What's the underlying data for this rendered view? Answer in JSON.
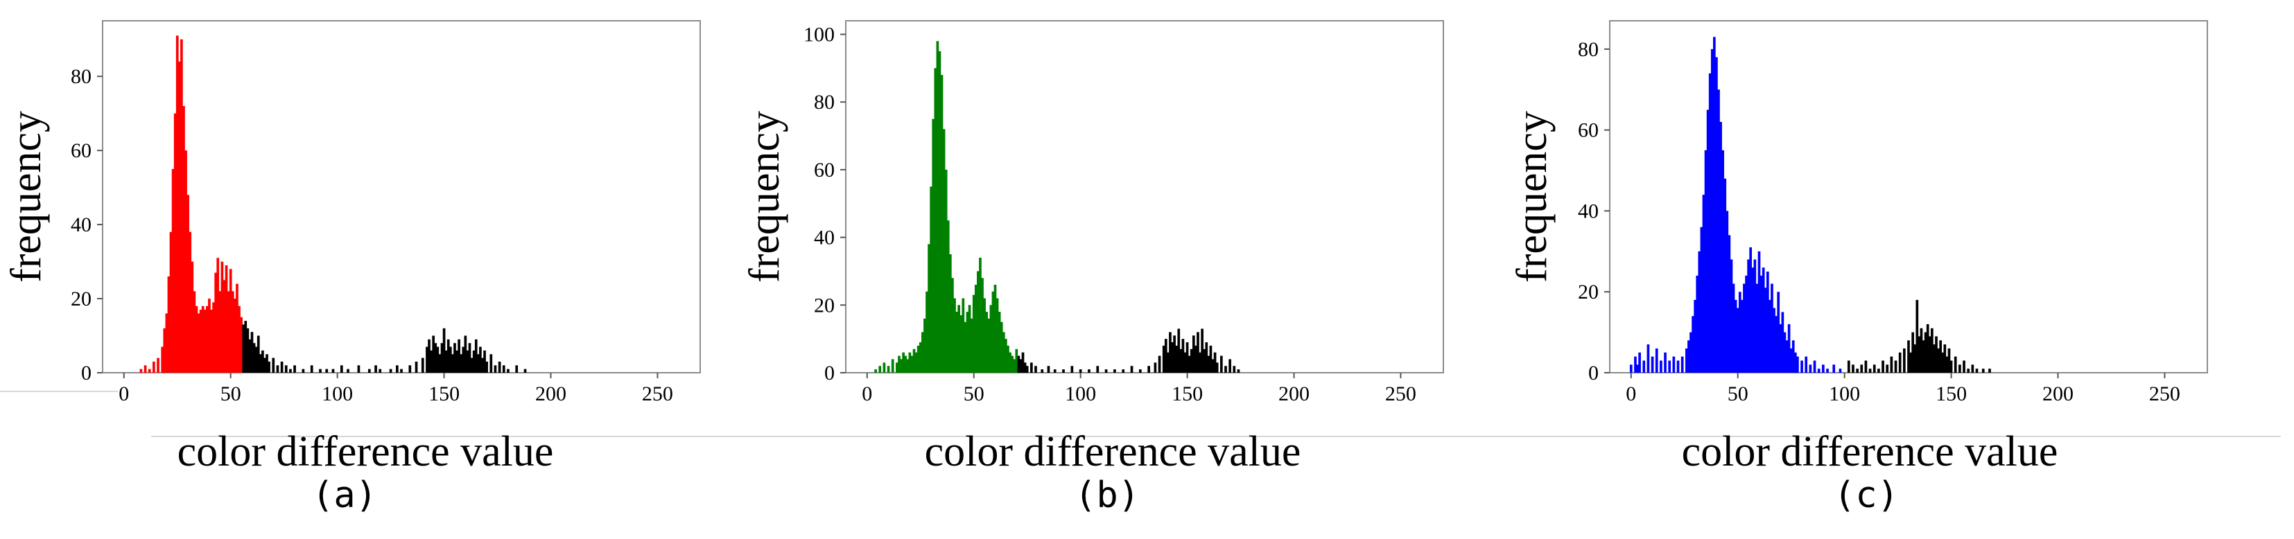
{
  "figure": {
    "captions": [
      "(a)",
      "(b)",
      "(c)"
    ]
  },
  "chart_data": [
    {
      "type": "bar",
      "panel": "(a)",
      "xlabel": "color difference value",
      "ylabel": "frequency",
      "xlim": [
        -10,
        270
      ],
      "ylim": [
        0,
        95
      ],
      "xticks": [
        0,
        50,
        100,
        150,
        200,
        250
      ],
      "yticks": [
        0,
        20,
        40,
        60,
        80
      ],
      "grid": false,
      "colors": {
        "primary": "#ff0000",
        "secondary": "#000000"
      },
      "threshold": 56,
      "bins": [
        [
          8,
          1
        ],
        [
          10,
          2
        ],
        [
          12,
          1
        ],
        [
          14,
          3
        ],
        [
          16,
          4
        ],
        [
          18,
          7
        ],
        [
          19,
          12
        ],
        [
          20,
          16
        ],
        [
          21,
          26
        ],
        [
          22,
          38
        ],
        [
          23,
          55
        ],
        [
          24,
          70
        ],
        [
          25,
          91
        ],
        [
          26,
          84
        ],
        [
          27,
          90
        ],
        [
          28,
          72
        ],
        [
          29,
          60
        ],
        [
          30,
          48
        ],
        [
          31,
          38
        ],
        [
          32,
          30
        ],
        [
          33,
          22
        ],
        [
          34,
          18
        ],
        [
          35,
          16
        ],
        [
          36,
          17
        ],
        [
          37,
          18
        ],
        [
          38,
          17
        ],
        [
          39,
          18
        ],
        [
          40,
          20
        ],
        [
          41,
          17
        ],
        [
          42,
          19
        ],
        [
          43,
          27
        ],
        [
          44,
          31
        ],
        [
          45,
          22
        ],
        [
          46,
          30
        ],
        [
          47,
          25
        ],
        [
          48,
          29
        ],
        [
          49,
          22
        ],
        [
          50,
          28
        ],
        [
          51,
          22
        ],
        [
          52,
          20
        ],
        [
          53,
          24
        ],
        [
          54,
          18
        ],
        [
          55,
          15
        ],
        [
          56,
          13
        ],
        [
          57,
          14
        ],
        [
          58,
          12
        ],
        [
          59,
          9
        ],
        [
          60,
          11
        ],
        [
          61,
          8
        ],
        [
          62,
          7
        ],
        [
          63,
          10
        ],
        [
          64,
          5
        ],
        [
          65,
          6
        ],
        [
          66,
          4
        ],
        [
          67,
          5
        ],
        [
          68,
          3
        ],
        [
          70,
          4
        ],
        [
          72,
          2
        ],
        [
          74,
          3
        ],
        [
          76,
          2
        ],
        [
          78,
          1
        ],
        [
          80,
          2
        ],
        [
          84,
          1
        ],
        [
          88,
          2
        ],
        [
          92,
          1
        ],
        [
          95,
          1
        ],
        [
          98,
          1
        ],
        [
          102,
          2
        ],
        [
          105,
          1
        ],
        [
          110,
          2
        ],
        [
          115,
          1
        ],
        [
          118,
          2
        ],
        [
          120,
          1
        ],
        [
          125,
          1
        ],
        [
          128,
          2
        ],
        [
          130,
          1
        ],
        [
          134,
          2
        ],
        [
          137,
          3
        ],
        [
          140,
          4
        ],
        [
          142,
          7
        ],
        [
          143,
          9
        ],
        [
          144,
          6
        ],
        [
          145,
          10
        ],
        [
          146,
          8
        ],
        [
          147,
          7
        ],
        [
          148,
          5
        ],
        [
          149,
          8
        ],
        [
          150,
          12
        ],
        [
          151,
          6
        ],
        [
          152,
          9
        ],
        [
          153,
          7
        ],
        [
          154,
          5
        ],
        [
          155,
          8
        ],
        [
          156,
          6
        ],
        [
          157,
          9
        ],
        [
          158,
          5
        ],
        [
          159,
          7
        ],
        [
          160,
          10
        ],
        [
          161,
          6
        ],
        [
          162,
          8
        ],
        [
          163,
          4
        ],
        [
          164,
          6
        ],
        [
          165,
          9
        ],
        [
          166,
          5
        ],
        [
          167,
          7
        ],
        [
          168,
          4
        ],
        [
          169,
          6
        ],
        [
          170,
          3
        ],
        [
          172,
          5
        ],
        [
          174,
          2
        ],
        [
          176,
          3
        ],
        [
          178,
          2
        ],
        [
          180,
          1
        ],
        [
          184,
          2
        ],
        [
          188,
          1
        ]
      ]
    },
    {
      "type": "bar",
      "panel": "(b)",
      "xlabel": "color difference value",
      "ylabel": "frequency",
      "xlim": [
        -10,
        270
      ],
      "ylim": [
        0,
        104
      ],
      "xticks": [
        0,
        50,
        100,
        150,
        200,
        250
      ],
      "yticks": [
        0,
        20,
        40,
        60,
        80,
        100
      ],
      "grid": false,
      "colors": {
        "primary": "#008000",
        "secondary": "#000000"
      },
      "threshold": 71,
      "bins": [
        [
          4,
          1
        ],
        [
          6,
          2
        ],
        [
          8,
          3
        ],
        [
          10,
          2
        ],
        [
          12,
          4
        ],
        [
          14,
          3
        ],
        [
          15,
          5
        ],
        [
          16,
          4
        ],
        [
          17,
          6
        ],
        [
          18,
          5
        ],
        [
          19,
          4
        ],
        [
          20,
          6
        ],
        [
          21,
          5
        ],
        [
          22,
          7
        ],
        [
          23,
          6
        ],
        [
          24,
          8
        ],
        [
          25,
          9
        ],
        [
          26,
          12
        ],
        [
          27,
          16
        ],
        [
          28,
          24
        ],
        [
          29,
          38
        ],
        [
          30,
          55
        ],
        [
          31,
          75
        ],
        [
          32,
          90
        ],
        [
          33,
          98
        ],
        [
          34,
          95
        ],
        [
          35,
          88
        ],
        [
          36,
          72
        ],
        [
          37,
          60
        ],
        [
          38,
          45
        ],
        [
          39,
          35
        ],
        [
          40,
          28
        ],
        [
          41,
          22
        ],
        [
          42,
          18
        ],
        [
          43,
          20
        ],
        [
          44,
          17
        ],
        [
          45,
          22
        ],
        [
          46,
          15
        ],
        [
          47,
          18
        ],
        [
          48,
          20
        ],
        [
          49,
          16
        ],
        [
          50,
          23
        ],
        [
          51,
          26
        ],
        [
          52,
          30
        ],
        [
          53,
          34
        ],
        [
          54,
          28
        ],
        [
          55,
          22
        ],
        [
          56,
          18
        ],
        [
          57,
          16
        ],
        [
          58,
          20
        ],
        [
          59,
          24
        ],
        [
          60,
          26
        ],
        [
          61,
          22
        ],
        [
          62,
          18
        ],
        [
          63,
          15
        ],
        [
          64,
          12
        ],
        [
          65,
          10
        ],
        [
          66,
          8
        ],
        [
          67,
          6
        ],
        [
          68,
          5
        ],
        [
          69,
          4
        ],
        [
          70,
          7
        ],
        [
          71,
          5
        ],
        [
          72,
          4
        ],
        [
          73,
          6
        ],
        [
          74,
          3
        ],
        [
          75,
          2
        ],
        [
          77,
          3
        ],
        [
          79,
          2
        ],
        [
          82,
          1
        ],
        [
          85,
          2
        ],
        [
          88,
          1
        ],
        [
          92,
          1
        ],
        [
          96,
          2
        ],
        [
          100,
          1
        ],
        [
          104,
          1
        ],
        [
          108,
          2
        ],
        [
          112,
          1
        ],
        [
          116,
          1
        ],
        [
          120,
          1
        ],
        [
          124,
          2
        ],
        [
          128,
          1
        ],
        [
          132,
          2
        ],
        [
          135,
          3
        ],
        [
          137,
          5
        ],
        [
          139,
          8
        ],
        [
          140,
          10
        ],
        [
          141,
          6
        ],
        [
          142,
          12
        ],
        [
          143,
          9
        ],
        [
          144,
          11
        ],
        [
          145,
          8
        ],
        [
          146,
          13
        ],
        [
          147,
          7
        ],
        [
          148,
          10
        ],
        [
          149,
          6
        ],
        [
          150,
          9
        ],
        [
          151,
          5
        ],
        [
          152,
          7
        ],
        [
          153,
          11
        ],
        [
          154,
          8
        ],
        [
          155,
          12
        ],
        [
          156,
          6
        ],
        [
          157,
          13
        ],
        [
          158,
          7
        ],
        [
          159,
          9
        ],
        [
          160,
          5
        ],
        [
          161,
          8
        ],
        [
          162,
          4
        ],
        [
          163,
          6
        ],
        [
          164,
          3
        ],
        [
          166,
          5
        ],
        [
          168,
          2
        ],
        [
          170,
          4
        ],
        [
          172,
          2
        ],
        [
          174,
          1
        ]
      ]
    },
    {
      "type": "bar",
      "panel": "(c)",
      "xlabel": "color difference value",
      "ylabel": "frequency",
      "xlim": [
        -10,
        270
      ],
      "ylim": [
        0,
        87
      ],
      "xticks": [
        0,
        50,
        100,
        150,
        200,
        250
      ],
      "yticks": [
        0,
        20,
        40,
        60,
        80
      ],
      "grid": false,
      "colors": {
        "primary": "#0000ff",
        "secondary": "#000000"
      },
      "threshold": 100,
      "bins": [
        [
          0,
          2
        ],
        [
          2,
          4
        ],
        [
          3,
          2
        ],
        [
          4,
          5
        ],
        [
          6,
          3
        ],
        [
          8,
          7
        ],
        [
          10,
          4
        ],
        [
          12,
          6
        ],
        [
          14,
          3
        ],
        [
          16,
          5
        ],
        [
          18,
          3
        ],
        [
          20,
          4
        ],
        [
          22,
          3
        ],
        [
          24,
          4
        ],
        [
          26,
          6
        ],
        [
          27,
          8
        ],
        [
          28,
          10
        ],
        [
          29,
          14
        ],
        [
          30,
          18
        ],
        [
          31,
          24
        ],
        [
          32,
          30
        ],
        [
          33,
          36
        ],
        [
          34,
          44
        ],
        [
          35,
          55
        ],
        [
          36,
          65
        ],
        [
          37,
          74
        ],
        [
          38,
          80
        ],
        [
          39,
          83
        ],
        [
          40,
          78
        ],
        [
          41,
          70
        ],
        [
          42,
          62
        ],
        [
          43,
          55
        ],
        [
          44,
          48
        ],
        [
          45,
          40
        ],
        [
          46,
          34
        ],
        [
          47,
          28
        ],
        [
          48,
          22
        ],
        [
          49,
          18
        ],
        [
          50,
          16
        ],
        [
          51,
          20
        ],
        [
          52,
          18
        ],
        [
          53,
          22
        ],
        [
          54,
          24
        ],
        [
          55,
          28
        ],
        [
          56,
          31
        ],
        [
          57,
          26
        ],
        [
          58,
          28
        ],
        [
          59,
          22
        ],
        [
          60,
          30
        ],
        [
          61,
          24
        ],
        [
          62,
          26
        ],
        [
          63,
          21
        ],
        [
          64,
          25
        ],
        [
          65,
          18
        ],
        [
          66,
          22
        ],
        [
          67,
          16
        ],
        [
          68,
          14
        ],
        [
          69,
          20
        ],
        [
          70,
          12
        ],
        [
          71,
          15
        ],
        [
          72,
          10
        ],
        [
          73,
          8
        ],
        [
          74,
          12
        ],
        [
          75,
          6
        ],
        [
          76,
          8
        ],
        [
          77,
          5
        ],
        [
          78,
          4
        ],
        [
          80,
          3
        ],
        [
          82,
          4
        ],
        [
          84,
          2
        ],
        [
          86,
          3
        ],
        [
          88,
          1
        ],
        [
          90,
          2
        ],
        [
          92,
          1
        ],
        [
          95,
          2
        ],
        [
          98,
          1
        ],
        [
          102,
          3
        ],
        [
          104,
          2
        ],
        [
          106,
          1
        ],
        [
          108,
          2
        ],
        [
          110,
          3
        ],
        [
          112,
          1
        ],
        [
          114,
          2
        ],
        [
          116,
          1
        ],
        [
          118,
          3
        ],
        [
          120,
          2
        ],
        [
          122,
          4
        ],
        [
          124,
          3
        ],
        [
          126,
          5
        ],
        [
          128,
          6
        ],
        [
          130,
          8
        ],
        [
          131,
          5
        ],
        [
          132,
          10
        ],
        [
          133,
          7
        ],
        [
          134,
          18
        ],
        [
          135,
          9
        ],
        [
          136,
          11
        ],
        [
          137,
          8
        ],
        [
          138,
          10
        ],
        [
          139,
          12
        ],
        [
          140,
          9
        ],
        [
          141,
          11
        ],
        [
          142,
          7
        ],
        [
          143,
          9
        ],
        [
          144,
          6
        ],
        [
          145,
          8
        ],
        [
          146,
          5
        ],
        [
          147,
          7
        ],
        [
          148,
          4
        ],
        [
          149,
          6
        ],
        [
          150,
          3
        ],
        [
          152,
          4
        ],
        [
          154,
          2
        ],
        [
          156,
          3
        ],
        [
          158,
          1
        ],
        [
          160,
          2
        ],
        [
          162,
          1
        ],
        [
          165,
          1
        ],
        [
          168,
          1
        ]
      ]
    }
  ]
}
